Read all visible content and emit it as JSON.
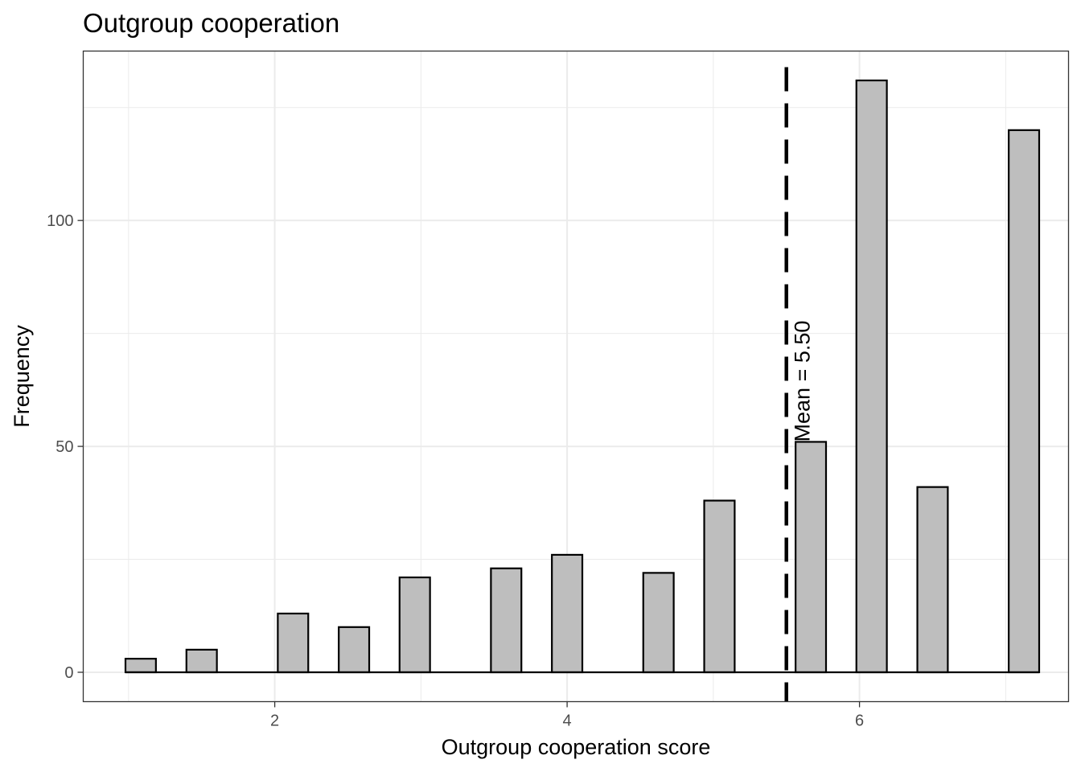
{
  "chart_data": {
    "type": "bar",
    "title": "Outgroup cooperation",
    "xlabel": "Outgroup cooperation score",
    "ylabel": "Frequency",
    "xlim": [
      0.69,
      7.43
    ],
    "ylim": [
      -6.5,
      137.5
    ],
    "x_ticks": [
      2,
      4,
      6
    ],
    "y_ticks": [
      0,
      50,
      100
    ],
    "bin_width": 0.2083,
    "bars": [
      {
        "x": 1.083,
        "value": 3
      },
      {
        "x": 1.292,
        "value": 0
      },
      {
        "x": 1.5,
        "value": 5
      },
      {
        "x": 1.708,
        "value": 0
      },
      {
        "x": 1.917,
        "value": 0
      },
      {
        "x": 2.125,
        "value": 13
      },
      {
        "x": 2.333,
        "value": 0
      },
      {
        "x": 2.542,
        "value": 10
      },
      {
        "x": 2.75,
        "value": 0
      },
      {
        "x": 2.958,
        "value": 21
      },
      {
        "x": 3.167,
        "value": 0
      },
      {
        "x": 3.375,
        "value": 0
      },
      {
        "x": 3.583,
        "value": 23
      },
      {
        "x": 3.792,
        "value": 0
      },
      {
        "x": 4.0,
        "value": 26
      },
      {
        "x": 4.208,
        "value": 0
      },
      {
        "x": 4.417,
        "value": 0
      },
      {
        "x": 4.625,
        "value": 22
      },
      {
        "x": 4.833,
        "value": 0
      },
      {
        "x": 5.042,
        "value": 38
      },
      {
        "x": 5.25,
        "value": 0
      },
      {
        "x": 5.458,
        "value": 0
      },
      {
        "x": 5.667,
        "value": 51
      },
      {
        "x": 5.875,
        "value": 0
      },
      {
        "x": 6.083,
        "value": 131
      },
      {
        "x": 6.292,
        "value": 0
      },
      {
        "x": 6.5,
        "value": 41
      },
      {
        "x": 6.708,
        "value": 0
      },
      {
        "x": 6.917,
        "value": 0
      },
      {
        "x": 7.125,
        "value": 120
      }
    ],
    "mean_line": {
      "x": 5.5,
      "label": "Mean = 5.50",
      "style": "dashed"
    },
    "bar_fill": "#bebebe",
    "bar_stroke": "#000000",
    "grid": true,
    "legend": "none"
  }
}
